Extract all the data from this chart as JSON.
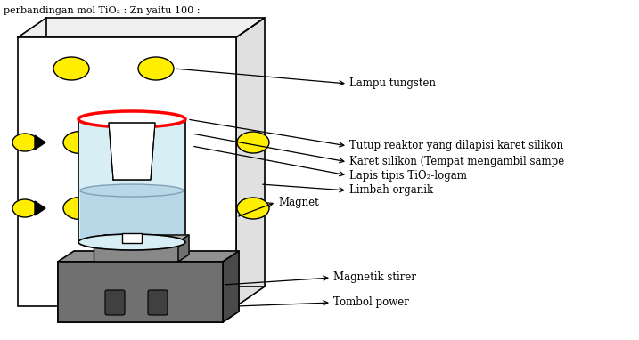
{
  "title_text": "perbandingan mol TiO₂ : Zn yaitu 100 :",
  "labels": {
    "lampu": "Lampu tungsten",
    "tutup": "Tutup reaktor yang dilapisi karet silikon",
    "karet": "Karet silikon (Tempat mengambil sampe",
    "lapis": "Lapis tipis TiO₂-logam",
    "limbah": "Limbah organik",
    "magnet": "Magnet",
    "magnetik": "Magnetik stirer",
    "tombol": "Tombol power"
  },
  "lamp_color": "#FFEE00",
  "reactor_fill": "#d8eef5",
  "box_3d_top": "#f0f0f0",
  "box_3d_right": "#e0e0e0",
  "stirer_gray": "#888888",
  "stirer_dark": "#585858",
  "base_gray": "#707070",
  "base_dark": "#505050",
  "button_color": "#404040"
}
